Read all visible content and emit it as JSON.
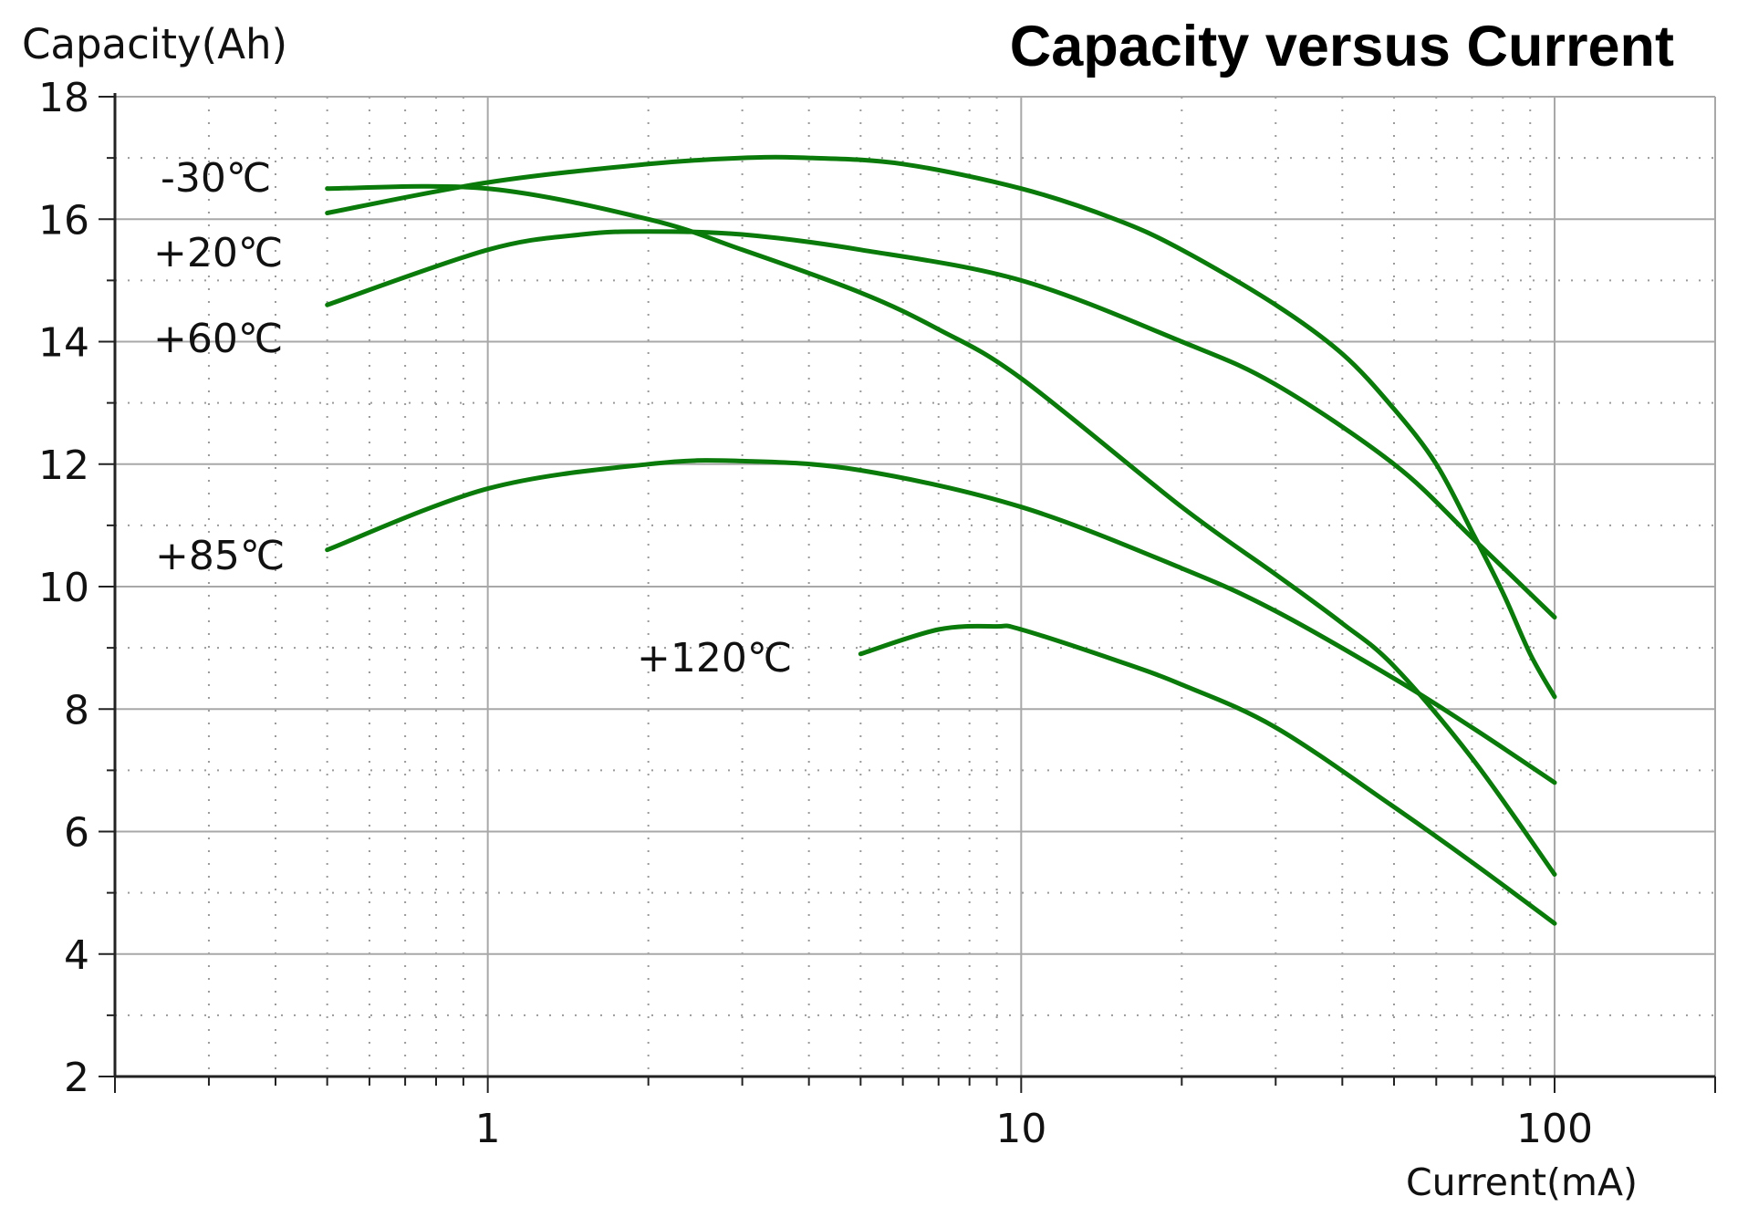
{
  "chart_data": {
    "type": "line",
    "title": "Capacity versus Current",
    "ylabel": "Capacity(Ah)",
    "xlabel": "Current(mA)",
    "xscale": "log",
    "xlim": [
      0.2,
      200
    ],
    "ylim": [
      2,
      18
    ],
    "yticks": [
      2,
      4,
      6,
      8,
      10,
      12,
      14,
      16,
      18
    ],
    "xticks": [
      1,
      10,
      100
    ],
    "ytick_labels": [
      "2",
      "4",
      "6",
      "8",
      "10",
      "12",
      "14",
      "16",
      "18"
    ],
    "xtick_labels": [
      "1",
      "10",
      "100"
    ],
    "grid": true,
    "line_color": "#0a7a0a",
    "series": [
      {
        "name": "-30℃",
        "x": [
          0.5,
          1,
          2,
          3,
          4,
          6,
          10,
          15,
          20,
          30,
          40,
          50,
          60,
          70,
          80,
          90,
          100
        ],
        "y": [
          16.1,
          16.6,
          16.9,
          17.0,
          17.0,
          16.9,
          16.5,
          16.0,
          15.5,
          14.6,
          13.8,
          12.9,
          12.0,
          10.9,
          9.9,
          8.9,
          8.2
        ]
      },
      {
        "name": "+20℃",
        "x": [
          0.5,
          1,
          2,
          3,
          5,
          7,
          10,
          20,
          30,
          40,
          50,
          70,
          100
        ],
        "y": [
          16.5,
          16.5,
          16.0,
          15.5,
          14.8,
          14.2,
          13.4,
          11.3,
          10.2,
          9.4,
          8.7,
          7.2,
          5.3
        ]
      },
      {
        "name": "+60℃",
        "x": [
          0.5,
          1,
          1.5,
          2,
          3,
          5,
          10,
          20,
          30,
          50,
          70,
          100
        ],
        "y": [
          14.6,
          15.5,
          15.75,
          15.8,
          15.75,
          15.5,
          15.0,
          14.0,
          13.3,
          12.0,
          10.8,
          9.5
        ]
      },
      {
        "name": "+85℃",
        "x": [
          0.5,
          1,
          2,
          3,
          5,
          10,
          20,
          30,
          50,
          70,
          100
        ],
        "y": [
          10.6,
          11.6,
          12.0,
          12.05,
          11.9,
          11.3,
          10.3,
          9.6,
          8.5,
          7.7,
          6.8
        ]
      },
      {
        "name": "+120℃",
        "x": [
          5,
          7,
          9,
          10,
          15,
          20,
          30,
          50,
          70,
          100
        ],
        "y": [
          8.9,
          9.3,
          9.35,
          9.3,
          8.8,
          8.4,
          7.7,
          6.4,
          5.5,
          4.5
        ]
      }
    ],
    "curve_labels": [
      "-30℃",
      "+20℃",
      "+60℃",
      "+85℃",
      "+120℃"
    ]
  }
}
